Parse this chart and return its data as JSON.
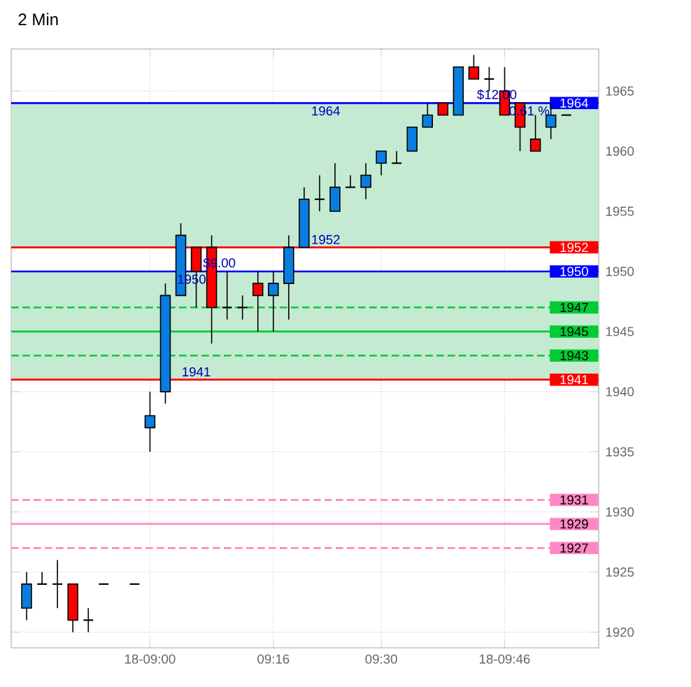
{
  "chart_data": {
    "type": "candlestick",
    "title": "2 Min",
    "x": [
      8.7333,
      8.7667,
      8.8,
      8.8333,
      8.8667,
      8.9,
      8.9667,
      9,
      9.0333,
      9.0667,
      9.1,
      9.1333,
      9.1667,
      9.2,
      9.2333,
      9.2667,
      9.3,
      9.3333,
      9.3667,
      9.4,
      9.4333,
      9.4667,
      9.5,
      9.5333,
      9.5667,
      9.6,
      9.6333,
      9.6667,
      9.7,
      9.7333,
      9.7667,
      9.8,
      9.8333,
      9.8667,
      9.9
    ],
    "ohlc": [
      [
        1922,
        1925,
        1921,
        1924
      ],
      [
        1924,
        1925,
        1924,
        1924
      ],
      [
        1924,
        1926,
        1922,
        1924
      ],
      [
        1924,
        1924,
        1920,
        1921
      ],
      [
        1921,
        1922,
        1920,
        1921
      ],
      [
        1924,
        1924,
        1924,
        1924
      ],
      [
        1924,
        1924,
        1924,
        1924
      ],
      [
        1937,
        1940,
        1935,
        1938
      ],
      [
        1940,
        1949,
        1939,
        1948
      ],
      [
        1948,
        1954,
        1948,
        1953
      ],
      [
        1952,
        1952,
        1947,
        1950
      ],
      [
        1952,
        1953,
        1944,
        1947
      ],
      [
        1947,
        1950,
        1946,
        1947
      ],
      [
        1947,
        1948,
        1946,
        1947
      ],
      [
        1949,
        1950,
        1945,
        1948
      ],
      [
        1948,
        1950,
        1945,
        1949
      ],
      [
        1949,
        1953,
        1946,
        1952
      ],
      [
        1952,
        1957,
        1952,
        1956
      ],
      [
        1956,
        1958,
        1955,
        1956
      ],
      [
        1955,
        1959,
        1955,
        1957
      ],
      [
        1957,
        1958,
        1957,
        1957
      ],
      [
        1957,
        1959,
        1956,
        1958
      ],
      [
        1959,
        1960,
        1958,
        1960
      ],
      [
        1959,
        1960,
        1959,
        1959
      ],
      [
        1960,
        1962,
        1960,
        1962
      ],
      [
        1962,
        1964,
        1962,
        1963
      ],
      [
        1964,
        1964,
        1963,
        1963
      ],
      [
        1963,
        1967,
        1963,
        1967
      ],
      [
        1967,
        1968,
        1966,
        1966
      ],
      [
        1966,
        1967,
        1965,
        1966
      ],
      [
        1965,
        1967,
        1963,
        1963
      ],
      [
        1964,
        1964,
        1960,
        1962
      ],
      [
        1961,
        1963,
        1960,
        1960
      ],
      [
        1962,
        1964,
        1961,
        1963
      ],
      [
        1963,
        1963,
        1963,
        1963
      ]
    ],
    "colors": [
      "#0a7ee0",
      "#000000",
      "#000000",
      "#ff0000",
      "#000000",
      "#000000",
      "#000000",
      "#0a7ee0",
      "#0a7ee0",
      "#0a7ee0",
      "#ff0000",
      "#ff0000",
      "#000000",
      "#000000",
      "#ff0000",
      "#0a7ee0",
      "#0a7ee0",
      "#0a7ee0",
      "#000000",
      "#0a7ee0",
      "#000000",
      "#0a7ee0",
      "#0a7ee0",
      "#000000",
      "#0a7ee0",
      "#0a7ee0",
      "#ff0000",
      "#0a7ee0",
      "#ff0000",
      "#000000",
      "#ff0000",
      "#ff0000",
      "#ff0000",
      "#0a7ee0",
      "#000000"
    ],
    "xlim": [
      8.7,
      9.97
    ],
    "ylim": [
      1918.7,
      1968.5
    ],
    "xticks": [
      {
        "value": 9,
        "label": "18-09:00"
      },
      {
        "value": 9.2667,
        "label": "09:16"
      },
      {
        "value": 9.5,
        "label": "09:30"
      },
      {
        "value": 9.7667,
        "label": "18-09:46"
      }
    ],
    "yticks": [
      1920,
      1925,
      1930,
      1935,
      1940,
      1945,
      1950,
      1955,
      1960,
      1965
    ],
    "grid": true,
    "bands": [
      {
        "axis": "y",
        "from": 1952,
        "to": 1964,
        "color": "#c4ead2"
      },
      {
        "axis": "y",
        "from": 1941,
        "to": 1950,
        "color": "#c4ead2"
      }
    ],
    "ref_lines": [
      {
        "axis": "y",
        "value": 1964,
        "label": "1964",
        "color": "#0000ff"
      },
      {
        "axis": "y",
        "value": 1952,
        "label": "1952",
        "color": "#ff0000"
      },
      {
        "axis": "y",
        "value": 1950,
        "label": "1950",
        "color": "#0000ff"
      },
      {
        "axis": "y",
        "value": 1947,
        "label": "1947",
        "color": "#00cc33",
        "line_style": "dashed"
      },
      {
        "axis": "y",
        "value": 1945,
        "label": "1945",
        "color": "#00cc33"
      },
      {
        "axis": "y",
        "value": 1943,
        "label": "1943",
        "color": "#00cc33",
        "line_style": "dashed"
      },
      {
        "axis": "y",
        "value": 1941,
        "label": "1941",
        "color": "#ff0000"
      },
      {
        "axis": "y",
        "value": 1931,
        "label": "1931",
        "color": "#ff88c4",
        "line_style": "dashed"
      },
      {
        "axis": "y",
        "value": 1929,
        "label": "1929",
        "color": "#ff88c4"
      },
      {
        "axis": "y",
        "value": 1927,
        "label": "1927",
        "color": "#ff88c4",
        "line_style": "dashed"
      }
    ],
    "annotations": [
      {
        "text": "$9.00",
        "x": 9.15,
        "y": 1950
      },
      {
        "text": "1950",
        "x": 9.09,
        "y": 1950
      },
      {
        "text": "1941",
        "x": 9.1,
        "y": 1941
      },
      {
        "text": "$12.00",
        "x": 9.75,
        "y": 1964
      },
      {
        "text": "1964",
        "x": 9.38,
        "y": 1964
      },
      {
        "text": "1952",
        "x": 9.38,
        "y": 1952
      },
      {
        "text": "0.61 %",
        "x": 9.82,
        "y": 1964
      }
    ]
  }
}
